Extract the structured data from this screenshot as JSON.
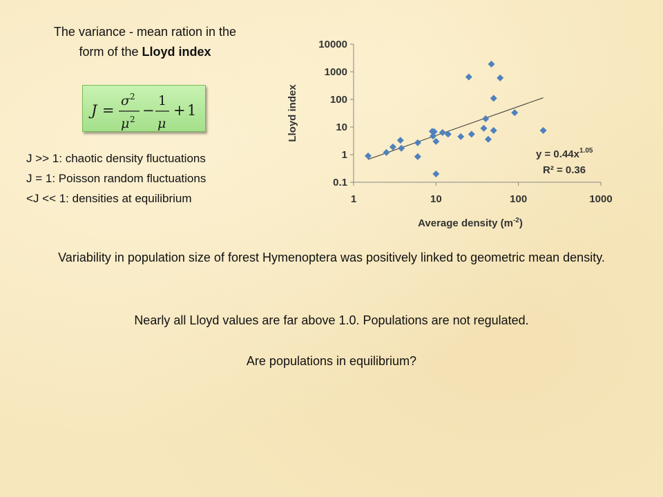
{
  "slide": {
    "title_line1": "The variance - mean ration in the",
    "title_line2_prefix": "form of the ",
    "title_line2_bold": "Lloyd index",
    "formula": {
      "lhs": "J",
      "eq": "=",
      "sigma": "σ",
      "mu": "μ",
      "exp": "2",
      "one": "1",
      "minus": "−",
      "plus": "+",
      "last": "1"
    },
    "j_items": [
      "J >> 1: chaotic density fluctuations",
      "J = 1: Poisson random fluctuations",
      "<J << 1: densities at equilibrium"
    ],
    "paragraph1": "Variability in population size of forest Hymenoptera was positively linked to geometric mean density.",
    "paragraph2": "Nearly all Lloyd values are far above 1.0. Populations are not regulated.",
    "question": "Are populations in equilibrium?"
  },
  "chart_data": {
    "type": "scatter",
    "xlabel_text": "Average density (m",
    "xlabel_sup": "-2",
    "xlabel_close": ")",
    "ylabel": "Lloyd index",
    "x_scale": "log",
    "y_scale": "log",
    "xlim": [
      1,
      1000
    ],
    "ylim": [
      0.1,
      10000
    ],
    "x_ticks": [
      "1",
      "10",
      "100",
      "1000"
    ],
    "y_ticks": [
      "10000",
      "1000",
      "100",
      "10",
      "1",
      "0.1"
    ],
    "grid": false,
    "marker_color": "#4f81bd",
    "trendline": {
      "type": "power",
      "a": 0.44,
      "b": 1.05,
      "x_range": [
        1.5,
        200
      ]
    },
    "equation_prefix": "y = 0.44x",
    "equation_exp": "1.05",
    "r2_text": "R² = 0.36",
    "points": [
      {
        "x": 1.5,
        "y": 0.9
      },
      {
        "x": 2.5,
        "y": 1.2
      },
      {
        "x": 3.0,
        "y": 1.9
      },
      {
        "x": 3.7,
        "y": 3.3
      },
      {
        "x": 3.8,
        "y": 1.7
      },
      {
        "x": 6.0,
        "y": 2.7
      },
      {
        "x": 6.0,
        "y": 0.85
      },
      {
        "x": 9.0,
        "y": 7.0
      },
      {
        "x": 9.2,
        "y": 4.7
      },
      {
        "x": 9.5,
        "y": 6.8
      },
      {
        "x": 10.0,
        "y": 3.0
      },
      {
        "x": 10.0,
        "y": 0.2
      },
      {
        "x": 12.0,
        "y": 6.3
      },
      {
        "x": 14.0,
        "y": 5.5
      },
      {
        "x": 20.0,
        "y": 4.5
      },
      {
        "x": 25.0,
        "y": 650
      },
      {
        "x": 27.0,
        "y": 5.5
      },
      {
        "x": 38.0,
        "y": 9.0
      },
      {
        "x": 40.0,
        "y": 20
      },
      {
        "x": 43.0,
        "y": 3.6
      },
      {
        "x": 47.0,
        "y": 1900
      },
      {
        "x": 50.0,
        "y": 110
      },
      {
        "x": 50.0,
        "y": 7.5
      },
      {
        "x": 60.0,
        "y": 600
      },
      {
        "x": 90.0,
        "y": 33
      },
      {
        "x": 200.0,
        "y": 7.5
      }
    ]
  }
}
